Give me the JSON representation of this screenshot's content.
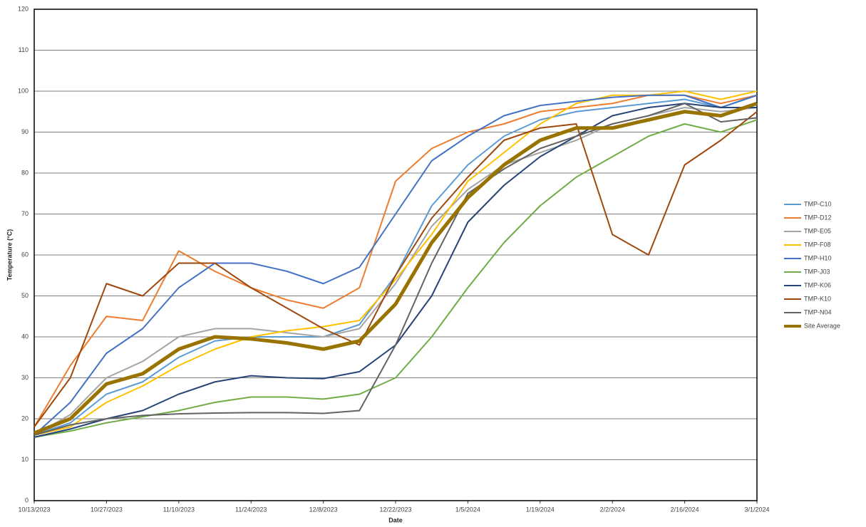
{
  "chart_data": {
    "type": "line",
    "x_label": "Date",
    "y_label": "Temperature (°C)",
    "x": [
      "10/13/2023",
      "10/20/2023",
      "10/27/2023",
      "11/3/2023",
      "11/10/2023",
      "11/17/2023",
      "11/24/2023",
      "12/1/2023",
      "12/8/2023",
      "12/15/2023",
      "12/22/2023",
      "12/29/2023",
      "1/5/2024",
      "1/12/2024",
      "1/19/2024",
      "1/26/2024",
      "2/2/2024",
      "2/9/2024",
      "2/16/2024",
      "2/23/2024",
      "3/1/2024"
    ],
    "xlim": [
      "10/13/2023",
      "3/1/2024"
    ],
    "xticks": [
      "10/13/2023",
      "10/27/2023",
      "11/10/2023",
      "11/24/2023",
      "12/8/2023",
      "12/22/2023",
      "1/5/2024",
      "1/19/2024",
      "2/2/2024",
      "2/16/2024",
      "3/1/2024"
    ],
    "ylim": [
      0,
      120
    ],
    "yticks": [
      0,
      10,
      20,
      30,
      40,
      50,
      60,
      70,
      80,
      90,
      100,
      110,
      120
    ],
    "grid": true,
    "legend": "right",
    "series": [
      {
        "name": "TMP-C10",
        "color": "#5b9bd5",
        "values": [
          16,
          19,
          26,
          29,
          35,
          39,
          40,
          40,
          40,
          43,
          55,
          72,
          82,
          89,
          93,
          95,
          96,
          97,
          98,
          96,
          99
        ]
      },
      {
        "name": "TMP-D12",
        "color": "#ed7d31",
        "values": [
          18,
          33,
          45,
          44,
          61,
          56,
          52,
          49,
          47,
          52,
          78,
          86,
          90,
          92,
          95,
          96,
          97,
          99,
          99,
          97,
          99
        ]
      },
      {
        "name": "TMP-E05",
        "color": "#a5a5a5",
        "values": [
          16,
          21,
          30,
          34,
          40,
          42,
          42,
          41,
          40,
          42,
          53,
          67,
          76,
          82,
          85,
          88,
          92,
          94,
          96,
          95,
          96
        ]
      },
      {
        "name": "TMP-F08",
        "color": "#ffc000",
        "values": [
          16,
          18,
          24,
          28,
          33,
          37,
          40,
          41.5,
          42.5,
          44,
          54,
          65,
          78,
          85,
          92,
          97,
          99,
          99,
          100,
          98,
          100
        ]
      },
      {
        "name": "TMP-H10",
        "color": "#4472c4",
        "values": [
          16,
          24,
          36,
          42,
          52,
          58,
          58,
          56,
          53,
          57,
          70,
          83,
          89,
          94,
          96.5,
          97.5,
          98.5,
          99,
          99,
          96,
          99
        ]
      },
      {
        "name": "TMP-J03",
        "color": "#70ad47",
        "values": [
          15.5,
          17,
          19,
          20.5,
          22,
          24,
          25.3,
          25.3,
          24.8,
          26,
          30,
          40,
          52,
          63,
          72,
          79,
          84,
          89,
          92,
          90,
          93
        ]
      },
      {
        "name": "TMP-K06",
        "color": "#264478",
        "values": [
          15.5,
          17.5,
          20,
          22,
          26,
          29,
          30.5,
          30,
          29.8,
          31.5,
          38,
          50,
          68,
          77,
          84,
          89,
          94,
          96,
          97,
          96,
          96
        ]
      },
      {
        "name": "TMP-K10",
        "color": "#9e480e",
        "values": [
          18,
          30,
          53,
          50,
          58,
          58,
          52,
          47,
          42,
          38,
          55,
          69,
          79,
          88,
          91,
          92,
          65,
          60,
          82,
          88,
          95
        ]
      },
      {
        "name": "TMP-N04",
        "color": "#636363",
        "values": [
          16,
          18.5,
          20,
          20.8,
          21.2,
          21.4,
          21.5,
          21.5,
          21.3,
          22,
          38,
          58,
          75,
          81,
          86,
          89,
          92,
          94,
          97,
          92.5,
          93.5
        ]
      },
      {
        "name": "Site Average",
        "color": "#997300",
        "values": [
          16.5,
          20,
          28.5,
          31,
          37,
          40,
          39.5,
          38.5,
          37,
          39,
          48,
          63,
          74,
          82,
          88,
          91,
          91,
          93,
          95,
          94,
          97
        ]
      }
    ]
  }
}
